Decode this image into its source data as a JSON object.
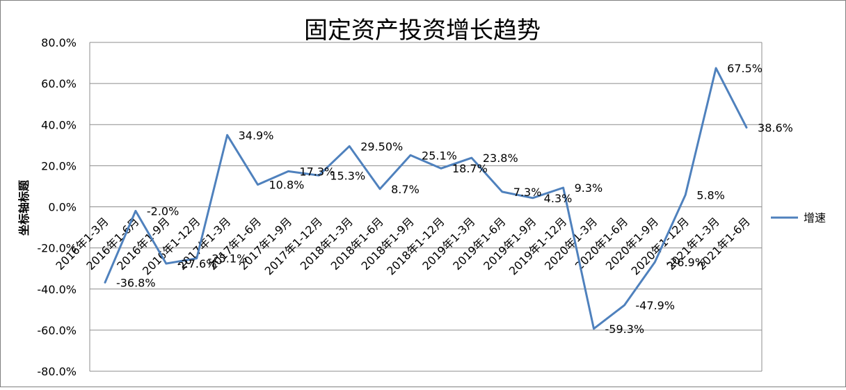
{
  "chart_data": {
    "type": "line",
    "title": "固定资产投资增长趋势",
    "xlabel": "",
    "ylabel": "坐标轴标题",
    "ylim": [
      -80,
      80
    ],
    "yticks": [
      "80.0%",
      "60.0%",
      "40.0%",
      "20.0%",
      "0.0%",
      "-20.0%",
      "-40.0%",
      "-60.0%",
      "-80.0%"
    ],
    "grid": true,
    "legend_position": "right",
    "line_color": "#4f81bd",
    "categories": [
      "2016年1-3月",
      "2016年1-6月",
      "2016年1-9月",
      "2016年1-12月",
      "2017年1-3月",
      "2017年1-6月",
      "2017年1-9月",
      "2017年1-12月",
      "2018年1-3月",
      "2018年1-6月",
      "2018年1-9月",
      "2018年1-12月",
      "2019年1-3月",
      "2019年1-6月",
      "2019年1-9月",
      "2019年1-12月",
      "2020年1-3月",
      "2020年1-6月",
      "2020年1-9月",
      "2020年1-12月",
      "2021年1-3月",
      "2021年1-6月"
    ],
    "series": [
      {
        "name": "增速",
        "values": [
          -36.8,
          -2.0,
          -27.6,
          -25.1,
          34.9,
          10.8,
          17.3,
          15.3,
          29.5,
          8.7,
          25.1,
          18.7,
          23.8,
          7.3,
          4.3,
          9.3,
          -59.3,
          -47.9,
          -26.9,
          5.8,
          67.5,
          38.6
        ],
        "data_labels": [
          "-36.8%",
          "-2.0%",
          "-27.6%",
          "-25.1%",
          "34.9%",
          "10.8%",
          "17.3%",
          "15.3%",
          "29.50%",
          "8.7%",
          "25.1%",
          "18.7%",
          "23.8%",
          "7.3%",
          "4.3%",
          "9.3%",
          "-59.3%",
          "-47.9%",
          "-26.9%",
          "5.8%",
          "67.5%",
          "38.6%"
        ]
      }
    ]
  }
}
